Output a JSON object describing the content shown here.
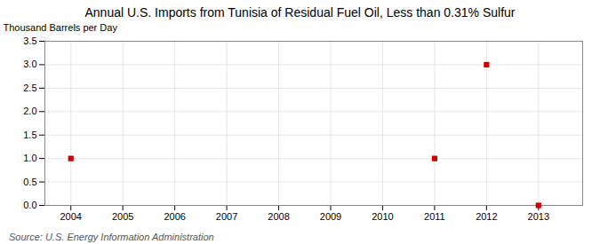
{
  "chart_data": {
    "type": "scatter",
    "title": "Annual U.S. Imports from Tunisia of Residual Fuel Oil, Less than 0.31% Sulfur",
    "ylabel": "Thousand Barrels per Day",
    "source": "Source: U.S. Energy Information Administration",
    "x": [
      2004,
      2011,
      2012,
      2013
    ],
    "values": [
      1.0,
      1.0,
      3.0,
      0.0
    ],
    "color": "#cc0000",
    "marker": "square",
    "xlim": [
      2003.5,
      2013.85
    ],
    "xticks": [
      2004,
      2005,
      2006,
      2007,
      2008,
      2009,
      2010,
      2011,
      2012,
      2013
    ],
    "ylim": [
      0.0,
      3.5
    ],
    "yticks": [
      {
        "value": 0.0,
        "label": "0.0"
      },
      0.5,
      {
        "value": 1.0,
        "label": "1.0"
      },
      1.5,
      {
        "value": 2.0,
        "label": "2.0"
      },
      2.5,
      {
        "value": 3.0,
        "label": "3.0"
      },
      3.5
    ],
    "grid": true
  }
}
